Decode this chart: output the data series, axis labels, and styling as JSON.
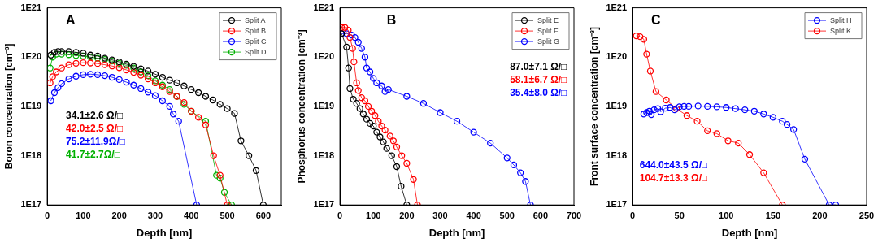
{
  "chart_data": [
    {
      "type": "line",
      "title": "A",
      "xlabel": "Depth [nm]",
      "ylabel": "Boron concentration [cm⁻³]",
      "log": "y",
      "marker": "circle",
      "legend": "top right",
      "grid": false,
      "xlim": [
        0,
        650
      ],
      "xticks": [
        0,
        100,
        200,
        300,
        400,
        500,
        600
      ],
      "ylim": [
        1e+17,
        1e+21
      ],
      "yticks": [
        {
          "value": 1e+17,
          "label": "1E17"
        },
        {
          "value": 1e+18,
          "label": "1E18"
        },
        {
          "value": 1e+19,
          "label": "1E19"
        },
        {
          "value": 1e+20,
          "label": "1E20"
        },
        {
          "value": 1e+21,
          "label": "1E21"
        }
      ],
      "annotations": [
        "34.1±2.6 Ω/□",
        "42.0±2.5 Ω/□",
        "75.2±11.9Ω/□",
        "41.7±2.7Ω/□"
      ],
      "series": [
        {
          "name": "Split A",
          "color": "#000000",
          "x": [
            10,
            20,
            30,
            40,
            60,
            80,
            100,
            120,
            140,
            160,
            180,
            200,
            220,
            240,
            260,
            280,
            300,
            320,
            340,
            360,
            380,
            400,
            420,
            440,
            460,
            480,
            500,
            520,
            538,
            560,
            580,
            600
          ],
          "values": [
            1.1e+20,
            1.25e+20,
            1.3e+20,
            1.3e+20,
            1.3e+20,
            1.25e+20,
            1.2e+20,
            1.1e+20,
            1.05e+20,
            9.5e+19,
            8.8e+19,
            8e+19,
            7.2e+19,
            6.5e+19,
            5.8e+19,
            5.2e+19,
            4.5e+19,
            3.9e+19,
            3.4e+19,
            3e+19,
            2.6e+19,
            2.2e+19,
            1.9e+19,
            1.6e+19,
            1.35e+19,
            1.1e+19,
            9e+18,
            7.2e+18,
            2e+18,
            1e+18,
            5e+17,
            1e+17
          ]
        },
        {
          "name": "Split B",
          "color": "#ff0000",
          "x": [
            8,
            15,
            25,
            40,
            60,
            80,
            100,
            120,
            140,
            160,
            180,
            200,
            220,
            240,
            260,
            280,
            300,
            320,
            340,
            360,
            380,
            400,
            420,
            440,
            462,
            480,
            500
          ],
          "values": [
            3e+19,
            4e+19,
            5e+19,
            6e+19,
            7e+19,
            7.5e+19,
            7.7e+19,
            7.6e+19,
            7.4e+19,
            7e+19,
            6.6e+19,
            6.1e+19,
            5.5e+19,
            4.9e+19,
            4.3e+19,
            3.6e+19,
            3e+19,
            2.5e+19,
            2e+19,
            1.6e+19,
            1.2e+19,
            8e+18,
            6e+18,
            4.2e+18,
            1e+18,
            4e+17,
            1e+17
          ]
        },
        {
          "name": "Split C",
          "color": "#0000ff",
          "x": [
            10,
            20,
            30,
            40,
            60,
            80,
            100,
            120,
            140,
            160,
            180,
            200,
            220,
            240,
            260,
            280,
            300,
            320,
            340,
            350,
            365,
            415
          ],
          "values": [
            1.3e+19,
            1.9e+19,
            2.4e+19,
            2.9e+19,
            3.6e+19,
            4.1e+19,
            4.4e+19,
            4.5e+19,
            4.4e+19,
            4.2e+19,
            3.9e+19,
            3.5e+19,
            3.1e+19,
            2.7e+19,
            2.3e+19,
            1.95e+19,
            1.65e+19,
            1.3e+19,
            1e+19,
            7e+18,
            5e+18,
            1e+17
          ]
        },
        {
          "name": "Split D",
          "color": "#00b000",
          "x": [
            8,
            15,
            25,
            40,
            60,
            80,
            100,
            120,
            140,
            160,
            180,
            200,
            220,
            240,
            260,
            280,
            300,
            320,
            340,
            360,
            380,
            400,
            440,
            470,
            480,
            492,
            512
          ],
          "values": [
            6e+19,
            1e+20,
            1.15e+20,
            1.15e+20,
            1.12e+20,
            1.08e+20,
            1.05e+20,
            1e+20,
            9.5e+19,
            9e+19,
            8.3e+19,
            7.5e+19,
            6.8e+19,
            6e+19,
            5e+19,
            4.2e+19,
            3.3e+19,
            2.7e+19,
            2.2e+19,
            1.6e+19,
            1.1e+19,
            8e+18,
            5e+18,
            4e+17,
            3.5e+17,
            1.8e+17,
            1e+17
          ]
        }
      ]
    },
    {
      "type": "line",
      "title": "B",
      "xlabel": "Depth [nm]",
      "ylabel": "Phosphorus concentration [cm⁻³]",
      "log": "y",
      "marker": "circle",
      "legend": "top right",
      "grid": false,
      "xlim": [
        0,
        700
      ],
      "xticks": [
        0,
        100,
        200,
        300,
        400,
        500,
        600,
        700
      ],
      "ylim": [
        1e+17,
        1e+21
      ],
      "yticks": [
        {
          "value": 1e+17,
          "label": "1E17"
        },
        {
          "value": 1e+18,
          "label": "1E18"
        },
        {
          "value": 1e+19,
          "label": "1E19"
        },
        {
          "value": 1e+20,
          "label": "1E20"
        },
        {
          "value": 1e+21,
          "label": "1E21"
        }
      ],
      "annotations": [
        "87.0±7.1 Ω/□",
        "58.1±6.7 Ω/□",
        "35.4±8.0 Ω/□"
      ],
      "series": [
        {
          "name": "Split E",
          "color": "#000000",
          "x": [
            5,
            20,
            26,
            30,
            40,
            50,
            60,
            70,
            80,
            90,
            100,
            110,
            120,
            130,
            140,
            155,
            170,
            183,
            200
          ],
          "values": [
            3e+20,
            1.6e+20,
            6e+19,
            2.3e+19,
            1.4e+19,
            1.15e+19,
            9e+18,
            7e+18,
            5.5e+18,
            4.5e+18,
            4e+18,
            3e+18,
            2.4e+18,
            1.9e+18,
            1.4e+18,
            1e+18,
            6e+17,
            2.4e+17,
            1e+17
          ]
        },
        {
          "name": "Split F",
          "color": "#ff0000",
          "x": [
            5,
            15,
            25,
            30,
            38,
            42,
            50,
            55,
            65,
            75,
            85,
            95,
            105,
            115,
            125,
            135,
            150,
            160,
            170,
            185,
            200,
            220,
            232
          ],
          "values": [
            4e+20,
            4e+20,
            3.5e+20,
            2.5e+20,
            1.5e+20,
            8e+19,
            3e+19,
            2.1e+19,
            1.5e+19,
            1.3e+19,
            1e+19,
            8e+18,
            6.5e+18,
            5e+18,
            4e+18,
            3.3e+18,
            2.5e+18,
            2e+18,
            1.5e+18,
            1e+18,
            7e+17,
            3.3e+17,
            1e+17
          ]
        },
        {
          "name": "Split G",
          "color": "#0000ff",
          "x": [
            5,
            20,
            35,
            45,
            55,
            65,
            75,
            80,
            90,
            100,
            110,
            125,
            135,
            145,
            200,
            250,
            300,
            350,
            400,
            450,
            500,
            520,
            540,
            555,
            570
          ],
          "values": [
            3e+20,
            3e+20,
            2.8e+20,
            2.5e+20,
            2e+20,
            1.5e+20,
            1e+20,
            6e+19,
            5e+19,
            3.7e+19,
            3e+19,
            2.6e+19,
            2e+19,
            2.2e+19,
            1.6e+19,
            1.15e+19,
            7.5e+18,
            5e+18,
            3e+18,
            1.8e+18,
            9e+17,
            6.5e+17,
            4.5e+17,
            3e+17,
            1e+17
          ]
        }
      ]
    },
    {
      "type": "line",
      "title": "C",
      "xlabel": "Depth [nm]",
      "ylabel": "Front surface concentration [cm⁻³]",
      "log": "y",
      "marker": "circle",
      "legend": "top right",
      "grid": false,
      "xlim": [
        0,
        250
      ],
      "xticks": [
        0,
        50,
        100,
        150,
        200,
        250
      ],
      "ylim": [
        1e+17,
        1e+21
      ],
      "yticks": [
        {
          "value": 1e+17,
          "label": "1E17"
        },
        {
          "value": 1e+18,
          "label": "1E18"
        },
        {
          "value": 1e+19,
          "label": "1E19"
        },
        {
          "value": 1e+20,
          "label": "1E20"
        },
        {
          "value": 1e+21,
          "label": "1E21"
        }
      ],
      "annotations": [
        "644.0±43.5 Ω/□",
        "104.7±13.3 Ω/□"
      ],
      "series": [
        {
          "name": "Split H",
          "color": "#0000ff",
          "x": [
            12,
            15,
            18,
            20,
            23,
            27,
            30,
            35,
            40,
            45,
            50,
            55,
            60,
            70,
            80,
            90,
            100,
            110,
            120,
            130,
            140,
            150,
            160,
            165,
            172,
            184,
            210,
            217
          ],
          "values": [
            7e+18,
            7.5e+18,
            8e+18,
            6.8e+18,
            8.5e+18,
            9e+18,
            7.8e+18,
            9.2e+18,
            9.5e+18,
            8.5e+18,
            9.8e+18,
            1e+19,
            1e+19,
            1.02e+19,
            1e+19,
            9.8e+18,
            9.5e+18,
            9e+18,
            8.5e+18,
            8e+18,
            7e+18,
            6e+18,
            5e+18,
            4.3e+18,
            3.4e+18,
            8.5e+17,
            1e+17,
            1e+17
          ]
        },
        {
          "name": "Split K",
          "color": "#ff0000",
          "x": [
            4,
            8,
            12,
            15,
            19,
            25,
            36,
            47,
            58,
            69,
            80,
            90,
            102,
            113,
            125,
            140,
            160
          ],
          "values": [
            2.7e+20,
            2.6e+20,
            2.3e+20,
            1.15e+20,
            5.2e+19,
            2e+19,
            1.35e+19,
            9e+18,
            6.5e+18,
            5e+18,
            3.2e+18,
            2.8e+18,
            2e+18,
            1.8e+18,
            1.05e+18,
            4.5e+17,
            1e+17
          ]
        }
      ]
    }
  ]
}
